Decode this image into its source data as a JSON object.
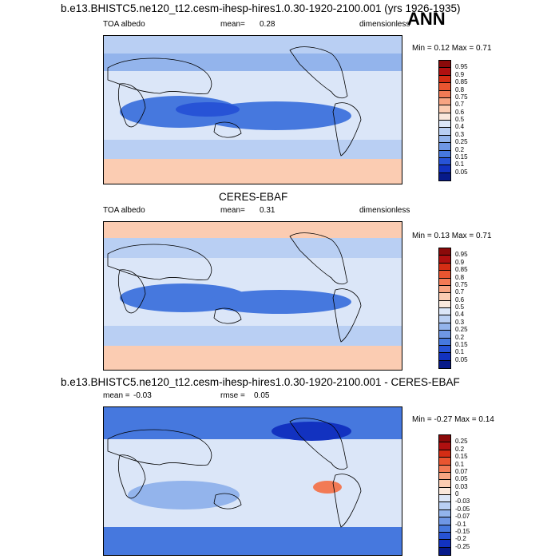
{
  "season": "ANN",
  "panels": [
    {
      "title": "b.e13.BHISTC5.ne120_t12.cesm-ihesp-hires1.0.30-1920-2100.001 (yrs 1926-1935)",
      "left": "TOA albedo",
      "mean_label": "mean=",
      "mean": "0.28",
      "units": "dimensionless",
      "minmax": "Min =  0.12 Max =  0.71"
    },
    {
      "title": "CERES-EBAF",
      "left": "TOA albedo",
      "mean_label": "mean=",
      "mean": "0.31",
      "units": "dimensionless",
      "minmax": "Min =  0.13 Max =  0.71"
    },
    {
      "title": "b.e13.BHISTC5.ne120_t12.cesm-ihesp-hires1.0.30-1920-2100.001 - CERES-EBAF",
      "mean_label": "mean =",
      "mean": "-0.03",
      "rmse_label": "rmse =",
      "rmse": "0.05",
      "minmax": "Min = -0.27 Max =  0.14"
    }
  ],
  "chart_data": [
    {
      "type": "heatmap",
      "title": "b.e13.BHISTC5.ne120_t12.cesm-ihesp-hires1.0.30-1920-2100.001 (yrs 1926-1935)",
      "variable": "TOA albedo",
      "units": "dimensionless",
      "mean": 0.28,
      "min": 0.12,
      "max": 0.71,
      "colorbar_levels": [
        "0.95",
        "0.9",
        "0.85",
        "0.8",
        "0.75",
        "0.7",
        "0.6",
        "0.5",
        "0.4",
        "0.3",
        "0.25",
        "0.2",
        "0.15",
        "0.1",
        "0.05"
      ],
      "colorbar_colors": [
        "#8b0a0a",
        "#b01010",
        "#d42d14",
        "#e95530",
        "#f27a55",
        "#f7a482",
        "#fbccb2",
        "#fae8dc",
        "#dbe6f8",
        "#b9cff3",
        "#93b4ec",
        "#6f97e5",
        "#4678de",
        "#2753d6",
        "#1232c0",
        "#071a8a"
      ]
    },
    {
      "type": "heatmap",
      "title": "CERES-EBAF",
      "variable": "TOA albedo",
      "units": "dimensionless",
      "mean": 0.31,
      "min": 0.13,
      "max": 0.71,
      "colorbar_levels": [
        "0.95",
        "0.9",
        "0.85",
        "0.8",
        "0.75",
        "0.7",
        "0.6",
        "0.5",
        "0.4",
        "0.3",
        "0.25",
        "0.2",
        "0.15",
        "0.1",
        "0.05"
      ],
      "colorbar_colors": [
        "#8b0a0a",
        "#b01010",
        "#d42d14",
        "#e95530",
        "#f27a55",
        "#f7a482",
        "#fbccb2",
        "#fae8dc",
        "#dbe6f8",
        "#b9cff3",
        "#93b4ec",
        "#6f97e5",
        "#4678de",
        "#2753d6",
        "#1232c0",
        "#071a8a"
      ]
    },
    {
      "type": "heatmap",
      "title": "b.e13.BHISTC5.ne120_t12.cesm-ihesp-hires1.0.30-1920-2100.001 - CERES-EBAF",
      "mean": -0.03,
      "rmse": 0.05,
      "min": -0.27,
      "max": 0.14,
      "colorbar_levels": [
        "0.25",
        "0.2",
        "0.15",
        "0.1",
        "0.07",
        "0.05",
        "0.03",
        "0",
        "-0.03",
        "-0.05",
        "-0.07",
        "-0.1",
        "-0.15",
        "-0.2",
        "-0.25"
      ],
      "colorbar_colors": [
        "#8b0a0a",
        "#b01010",
        "#d42d14",
        "#e95530",
        "#f27a55",
        "#f7a482",
        "#fbccb2",
        "#fae8dc",
        "#dbe6f8",
        "#b9cff3",
        "#93b4ec",
        "#6f97e5",
        "#4678de",
        "#2753d6",
        "#1232c0",
        "#071a8a"
      ]
    }
  ]
}
